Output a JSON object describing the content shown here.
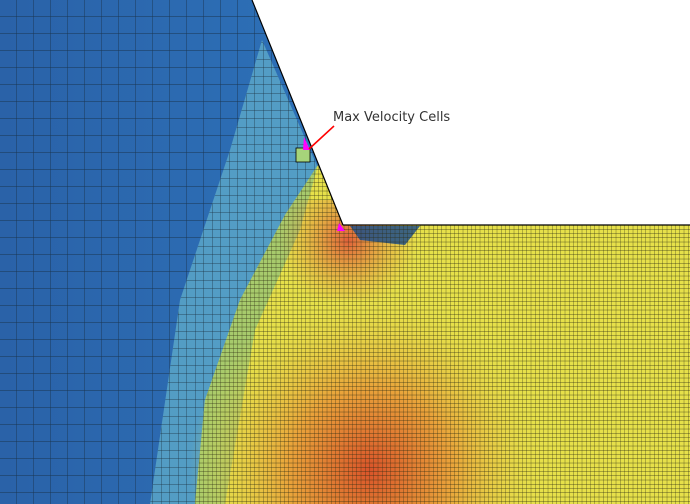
{
  "annotation": {
    "label": "Max Velocity Cells"
  },
  "colors": {
    "coarse_cells": "#2e6db0",
    "transition_cells": "#5aa6c8",
    "fine_cells_fluid": "#e6e04a",
    "hot_spot": "#d9542a",
    "max_velocity_marker": "#ff00ff",
    "arrow": "#ff0000",
    "void": "#ffffff"
  }
}
